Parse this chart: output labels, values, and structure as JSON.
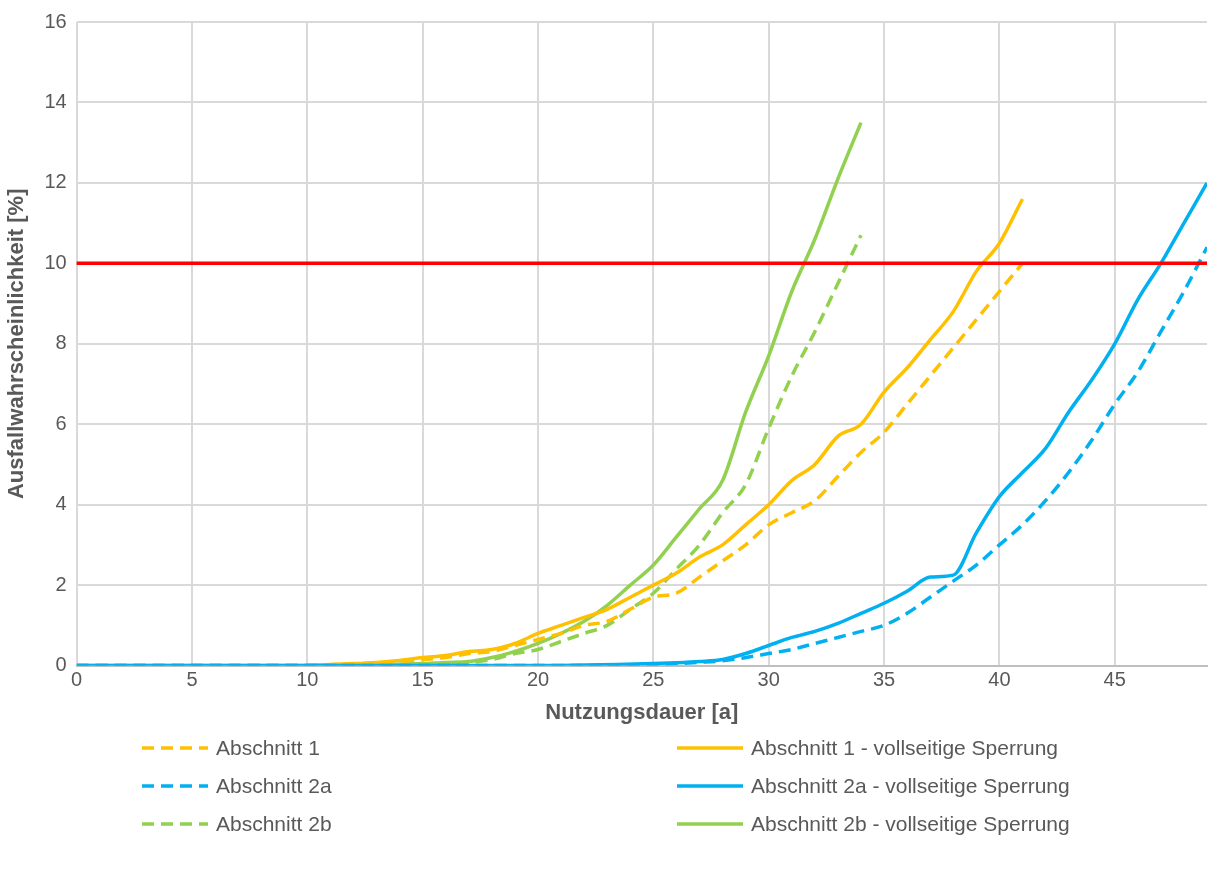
{
  "chart_data": {
    "type": "line",
    "xlabel": "Nutzungsdauer [a]",
    "ylabel": "Ausfallwahrscheinlichkeit [%]",
    "xlim": [
      0,
      49
    ],
    "xticks": [
      0,
      5,
      10,
      15,
      20,
      25,
      30,
      35,
      40,
      45
    ],
    "ylim": [
      0,
      16
    ],
    "yticks": [
      0,
      2,
      4,
      6,
      8,
      10,
      12,
      14,
      16
    ],
    "grid": true,
    "legend": "bottom",
    "marker": "none",
    "ref_lines": [
      {
        "axis": "y",
        "value": 10,
        "color": "#ff0000"
      }
    ],
    "series": [
      {
        "name": "Abschnitt 1",
        "color": "#ffc000",
        "line_style": "dashed",
        "x": [
          10,
          11,
          12,
          13,
          14,
          15,
          16,
          17,
          18,
          19,
          20,
          21,
          22,
          23,
          24,
          25,
          26,
          27,
          28,
          29,
          30,
          31,
          32,
          33,
          34,
          35,
          36,
          37,
          38,
          39,
          40,
          41
        ],
        "values": [
          0,
          0.02,
          0.04,
          0.07,
          0.1,
          0.15,
          0.2,
          0.3,
          0.35,
          0.5,
          0.65,
          0.8,
          1.0,
          1.1,
          1.4,
          1.7,
          1.8,
          2.2,
          2.6,
          3.0,
          3.5,
          3.8,
          4.1,
          4.7,
          5.3,
          5.8,
          6.5,
          7.2,
          7.9,
          8.6,
          9.3,
          10.0
        ]
      },
      {
        "name": "Abschnitt 1 - vollseitige Sperrung",
        "color": "#ffc000",
        "line_style": "solid",
        "x": [
          10,
          11,
          12,
          13,
          14,
          15,
          16,
          17,
          18,
          19,
          20,
          21,
          22,
          23,
          24,
          25,
          26,
          27,
          28,
          29,
          30,
          31,
          32,
          33,
          34,
          35,
          36,
          37,
          38,
          39,
          40,
          41
        ],
        "values": [
          0,
          0.03,
          0.05,
          0.08,
          0.13,
          0.2,
          0.25,
          0.35,
          0.4,
          0.55,
          0.8,
          1.0,
          1.2,
          1.4,
          1.7,
          2.0,
          2.3,
          2.7,
          3.0,
          3.5,
          4.0,
          4.6,
          5.0,
          5.7,
          6.0,
          6.8,
          7.4,
          8.1,
          8.8,
          9.8,
          10.5,
          11.6
        ]
      },
      {
        "name": "Abschnitt 2a",
        "color": "#00b0f0",
        "line_style": "dashed",
        "x": [
          0,
          5,
          10,
          15,
          20,
          25,
          26,
          27,
          28,
          29,
          30,
          31,
          32,
          33,
          34,
          35,
          36,
          37,
          38,
          39,
          40,
          41,
          42,
          43,
          44,
          45,
          46,
          47,
          48,
          49
        ],
        "values": [
          0,
          0,
          0,
          0,
          0,
          0.03,
          0.05,
          0.08,
          0.12,
          0.2,
          0.3,
          0.4,
          0.55,
          0.7,
          0.85,
          1.0,
          1.3,
          1.7,
          2.1,
          2.5,
          3.0,
          3.5,
          4.1,
          4.8,
          5.6,
          6.5,
          7.3,
          8.3,
          9.3,
          10.4
        ]
      },
      {
        "name": "Abschnitt 2a - vollseitige Sperrung",
        "color": "#00b0f0",
        "line_style": "solid",
        "x": [
          0,
          5,
          10,
          15,
          20,
          25,
          26,
          27,
          28,
          29,
          30,
          31,
          32,
          33,
          34,
          35,
          36,
          37,
          38,
          39,
          40,
          41,
          42,
          43,
          44,
          45,
          46,
          47,
          48,
          49
        ],
        "values": [
          0,
          0,
          0,
          0,
          0,
          0.05,
          0.07,
          0.1,
          0.15,
          0.3,
          0.5,
          0.7,
          0.85,
          1.05,
          1.3,
          1.55,
          1.85,
          2.2,
          2.25,
          3.3,
          4.2,
          4.8,
          5.4,
          6.3,
          7.1,
          8.0,
          9.1,
          10.0,
          11.0,
          12.0
        ]
      },
      {
        "name": "Abschnitt 2b",
        "color": "#92d050",
        "line_style": "dashed",
        "x": [
          0,
          5,
          10,
          15,
          16,
          17,
          18,
          19,
          20,
          21,
          22,
          23,
          24,
          25,
          26,
          27,
          28,
          29,
          30,
          31,
          32,
          33,
          34
        ],
        "values": [
          0,
          0,
          0,
          0.02,
          0.05,
          0.08,
          0.15,
          0.3,
          0.4,
          0.6,
          0.8,
          1.0,
          1.4,
          1.8,
          2.4,
          3.0,
          3.8,
          4.5,
          5.9,
          7.2,
          8.3,
          9.5,
          10.7
        ]
      },
      {
        "name": "Abschnitt 2b - vollseitige Sperrung",
        "color": "#92d050",
        "line_style": "solid",
        "x": [
          0,
          5,
          10,
          15,
          16,
          17,
          18,
          19,
          20,
          21,
          22,
          23,
          24,
          25,
          26,
          27,
          28,
          29,
          30,
          31,
          32,
          33,
          34
        ],
        "values": [
          0,
          0,
          0,
          0.05,
          0.08,
          0.1,
          0.2,
          0.35,
          0.55,
          0.8,
          1.1,
          1.5,
          2.0,
          2.5,
          3.2,
          3.9,
          4.6,
          6.3,
          7.7,
          9.3,
          10.6,
          12.1,
          13.5
        ]
      }
    ]
  }
}
